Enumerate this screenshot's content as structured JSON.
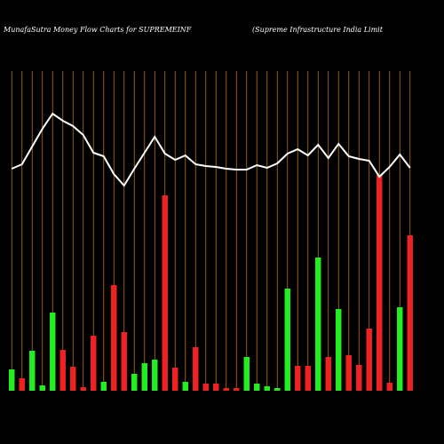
{
  "chart_data": {
    "type": "bar-line",
    "title": "MunafaSutra  Money Flow  Charts for SUPREMEINF",
    "subtitle": "(Supreme  Infrastructure  India  Limit",
    "categories": [
      null,
      null,
      null,
      null,
      null,
      null,
      null,
      null,
      null,
      null,
      null,
      null,
      null,
      null,
      null,
      null,
      null,
      null,
      null,
      null,
      null,
      null,
      null,
      null,
      null,
      null,
      null,
      null,
      null,
      null,
      null,
      null,
      null,
      null,
      null,
      null,
      null,
      null,
      null,
      null
    ],
    "ylim": [
      0,
      360
    ],
    "grid_color": "#b8731e",
    "bars": {
      "values": [
        24,
        14,
        45,
        6,
        88,
        46,
        27,
        4,
        62,
        10,
        119,
        66,
        19,
        31,
        35,
        220,
        26,
        10,
        49,
        8,
        8,
        3,
        3,
        38,
        8,
        5,
        3,
        115,
        28,
        28,
        150,
        38,
        92,
        40,
        29,
        70,
        243,
        9,
        94,
        175
      ],
      "colors": [
        "#22ee22",
        "#ee2222",
        "#22ee22",
        "#22ee22",
        "#22ee22",
        "#ee2222",
        "#ee2222",
        "#ee2222",
        "#ee2222",
        "#22ee22",
        "#ee2222",
        "#ee2222",
        "#22ee22",
        "#22ee22",
        "#22ee22",
        "#ee2222",
        "#ee2222",
        "#22ee22",
        "#ee2222",
        "#ee2222",
        "#ee2222",
        "#ee2222",
        "#ee2222",
        "#22ee22",
        "#22ee22",
        "#22ee22",
        "#22ee22",
        "#22ee22",
        "#ee2222",
        "#ee2222",
        "#22ee22",
        "#ee2222",
        "#22ee22",
        "#ee2222",
        "#ee2222",
        "#ee2222",
        "#ee2222",
        "#ee2222",
        "#22ee22",
        "#ee2222"
      ]
    },
    "line": {
      "color": "#ffffff",
      "values": [
        250,
        255,
        275,
        295,
        312,
        304,
        298,
        288,
        268,
        264,
        244,
        231,
        250,
        268,
        286,
        267,
        260,
        265,
        255,
        253,
        252,
        250,
        249,
        249,
        254,
        251,
        256,
        267,
        272,
        265,
        277,
        262,
        278,
        264,
        261,
        259,
        241,
        252,
        266,
        251
      ]
    }
  }
}
